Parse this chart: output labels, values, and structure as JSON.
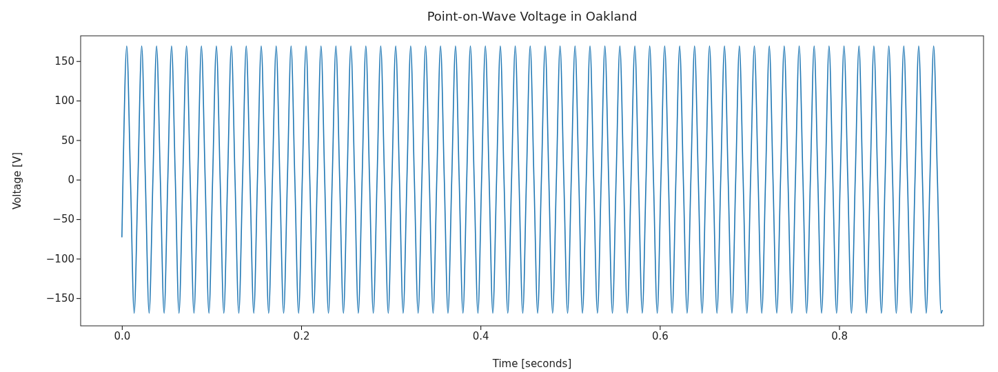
{
  "chart_data": {
    "type": "line",
    "title": "Point-on-Wave Voltage in Oakland",
    "xlabel": "Time [seconds]",
    "ylabel": "Voltage [V]",
    "xlim": [
      -0.046,
      0.961
    ],
    "ylim": [
      -185,
      182
    ],
    "xticks": [
      {
        "value": 0,
        "label": "0.0"
      },
      {
        "value": 0.2,
        "label": "0.2"
      },
      {
        "value": 0.4,
        "label": "0.4"
      },
      {
        "value": 0.6,
        "label": "0.6"
      },
      {
        "value": 0.8,
        "label": "0.8"
      }
    ],
    "yticks": [
      {
        "value": -150,
        "label": "−150"
      },
      {
        "value": -100,
        "label": "−100"
      },
      {
        "value": -50,
        "label": "−50"
      },
      0,
      50,
      100,
      150
    ],
    "grid": false,
    "marker": "none",
    "line_style": "solid",
    "series": [
      {
        "color": "#1f77b4",
        "x": [
          0,
          0.0012,
          0.0054,
          0.0096,
          0.0137,
          0.0179,
          0.0221,
          0.0262,
          0.0304,
          0.0346,
          0.0387,
          0.0429,
          0.0471,
          0.0512,
          0.0554,
          0.0596,
          0.0637,
          0.0679,
          0.0721,
          0.0762,
          0.0804,
          0.0846,
          0.0887,
          0.0929,
          0.0971,
          0.1012,
          0.1054,
          0.1096,
          0.1137,
          0.1179,
          0.1221,
          0.1262,
          0.1304,
          0.1346,
          0.1387,
          0.1429,
          0.1471,
          0.1512,
          0.1554,
          0.1596,
          0.1637,
          0.1679,
          0.1721,
          0.1762,
          0.1804,
          0.1846,
          0.1887,
          0.1929,
          0.1971,
          0.2012,
          0.2054,
          0.2096,
          0.2137,
          0.2179,
          0.2221,
          0.2262,
          0.2304,
          0.2346,
          0.2387,
          0.2429,
          0.2471,
          0.2512,
          0.2554,
          0.2596,
          0.2637,
          0.2679,
          0.2721,
          0.2762,
          0.2804,
          0.2846,
          0.2887,
          0.2929,
          0.2971,
          0.3012,
          0.3054,
          0.3096,
          0.3137,
          0.3179,
          0.3221,
          0.3262,
          0.3304,
          0.3346,
          0.3387,
          0.3429,
          0.3471,
          0.3512,
          0.3554,
          0.3596,
          0.3637,
          0.3679,
          0.3721,
          0.3762,
          0.3804,
          0.3846,
          0.3887,
          0.3929,
          0.3971,
          0.4012,
          0.4054,
          0.4096,
          0.4137,
          0.4179,
          0.4221,
          0.4262,
          0.4304,
          0.4346,
          0.4387,
          0.4429,
          0.4471,
          0.4512,
          0.4554,
          0.4596,
          0.4637,
          0.4679,
          0.4721,
          0.4762,
          0.4804,
          0.4846,
          0.4887,
          0.4929,
          0.4971,
          0.5012,
          0.5054,
          0.5096,
          0.5137,
          0.5179,
          0.5221,
          0.5262,
          0.5304,
          0.5346,
          0.5387,
          0.5429,
          0.5471,
          0.5512,
          0.5554,
          0.5596,
          0.5637,
          0.5679,
          0.5721,
          0.5762,
          0.5804,
          0.5846,
          0.5887,
          0.5929,
          0.5971,
          0.6012,
          0.6054,
          0.6096,
          0.6137,
          0.6179,
          0.6221,
          0.6262,
          0.6304,
          0.6346,
          0.6387,
          0.6429,
          0.6471,
          0.6512,
          0.6554,
          0.6596,
          0.6637,
          0.6679,
          0.6721,
          0.6762,
          0.6804,
          0.6846,
          0.6887,
          0.6929,
          0.6971,
          0.7012,
          0.7054,
          0.7096,
          0.7137,
          0.7179,
          0.7221,
          0.7262,
          0.7304,
          0.7346,
          0.7387,
          0.7429,
          0.7471,
          0.7512,
          0.7554,
          0.7596,
          0.7637,
          0.7679,
          0.7721,
          0.7762,
          0.7804,
          0.7846,
          0.7887,
          0.7929,
          0.7971,
          0.8012,
          0.8054,
          0.8096,
          0.8137,
          0.8179,
          0.8221,
          0.8262,
          0.8304,
          0.8346,
          0.8387,
          0.8429,
          0.8471,
          0.8512,
          0.8554,
          0.8596,
          0.8637,
          0.8679,
          0.8721,
          0.8762,
          0.8804,
          0.8846,
          0.8887,
          0.8929,
          0.8971,
          0.9012,
          0.9054,
          0.9096,
          0.9137,
          0.915
        ],
        "values": [
          -73,
          0,
          169,
          0,
          -169,
          0,
          169,
          0,
          -169,
          0,
          169,
          0,
          -169,
          0,
          169,
          0,
          -169,
          0,
          169,
          0,
          -169,
          0,
          169,
          0,
          -169,
          0,
          169,
          0,
          -169,
          0,
          169,
          0,
          -169,
          0,
          169,
          0,
          -169,
          0,
          169,
          0,
          -169,
          0,
          169,
          0,
          -169,
          0,
          169,
          0,
          -169,
          0,
          169,
          0,
          -169,
          0,
          169,
          0,
          -169,
          0,
          169,
          0,
          -169,
          0,
          169,
          0,
          -169,
          0,
          169,
          0,
          -169,
          0,
          169,
          0,
          -169,
          0,
          169,
          0,
          -169,
          0,
          169,
          0,
          -169,
          0,
          169,
          0,
          -169,
          0,
          169,
          0,
          -169,
          0,
          169,
          0,
          -169,
          0,
          169,
          0,
          -169,
          0,
          169,
          0,
          -169,
          0,
          169,
          0,
          -169,
          0,
          169,
          0,
          -169,
          0,
          169,
          0,
          -169,
          0,
          169,
          0,
          -169,
          0,
          169,
          0,
          -169,
          0,
          169,
          0,
          -169,
          0,
          169,
          0,
          -169,
          0,
          169,
          0,
          -169,
          0,
          169,
          0,
          -169,
          0,
          169,
          0,
          -169,
          0,
          169,
          0,
          -169,
          0,
          169,
          0,
          -169,
          0,
          169,
          0,
          -169,
          0,
          169,
          0,
          -169,
          0,
          169,
          0,
          -169,
          0,
          169,
          0,
          -169,
          0,
          169,
          0,
          -169,
          0,
          169,
          0,
          -169,
          0,
          169,
          0,
          -169,
          0,
          169,
          0,
          -169,
          0,
          169,
          0,
          -169,
          0,
          169,
          0,
          -169,
          0,
          169,
          0,
          -169,
          0,
          169,
          0,
          -169,
          0,
          169,
          0,
          -169,
          0,
          169,
          0,
          -169,
          0,
          169,
          0,
          -169,
          0,
          169,
          0,
          -169,
          0,
          169,
          0,
          -169,
          0,
          169,
          0,
          -169,
          -165
        ]
      }
    ]
  }
}
